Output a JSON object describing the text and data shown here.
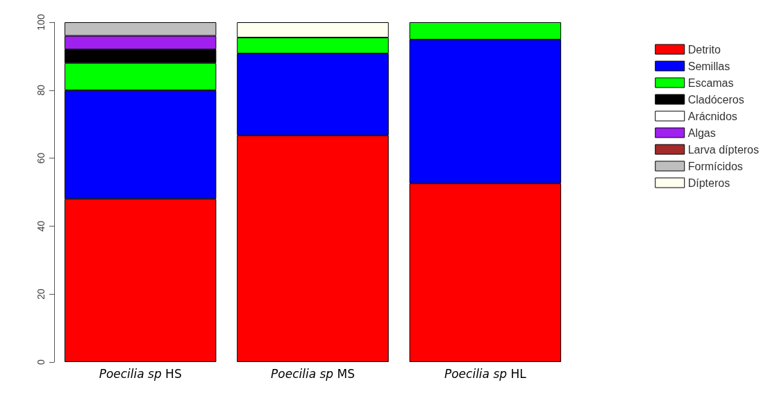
{
  "chart_data": {
    "type": "bar",
    "stacked": true,
    "categories": [
      "Poecilia sp HS",
      "Poecilia sp MS",
      "Poecilia sp HL"
    ],
    "series": [
      {
        "name": "Detrito",
        "color": "#ff0000",
        "values": [
          48,
          66.7,
          52.6
        ]
      },
      {
        "name": "Semillas",
        "color": "#0000ff",
        "values": [
          32,
          24.1,
          42.3
        ]
      },
      {
        "name": "Escamas",
        "color": "#00ff00",
        "values": [
          8,
          4.7,
          5.1
        ]
      },
      {
        "name": "Cladóceros",
        "color": "#000000",
        "values": [
          4,
          null,
          null
        ]
      },
      {
        "name": "Arácnidos",
        "color": "#ffffff",
        "values": [
          null,
          null,
          null
        ]
      },
      {
        "name": "Algas",
        "color": "#a020f0",
        "values": [
          4,
          null,
          null
        ]
      },
      {
        "name": "Larva dípteros",
        "color": "#a52a2a",
        "values": [
          null,
          null,
          null
        ]
      },
      {
        "name": "Formícidos",
        "color": "#bebebe",
        "values": [
          4,
          null,
          null
        ]
      },
      {
        "name": "Dípteros",
        "color": "#fffff0",
        "values": [
          null,
          4.5,
          null
        ]
      }
    ],
    "ylim": [
      0,
      100
    ],
    "yticks": [
      0,
      20,
      40,
      60,
      80,
      100
    ],
    "grid": false,
    "legend": "right"
  }
}
